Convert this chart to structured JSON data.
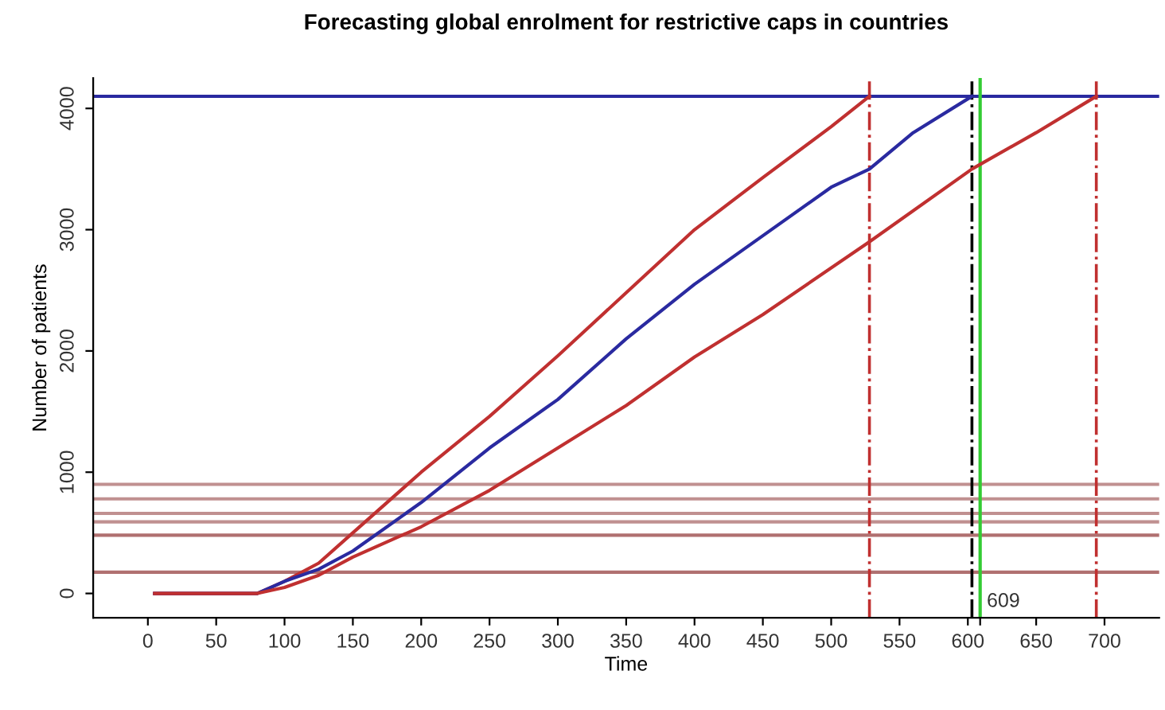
{
  "chart_data": {
    "type": "line",
    "title": "Forecasting global enrolment for restrictive caps in countries",
    "xlabel": "Time",
    "ylabel": "Number of patients",
    "series": [
      {
        "color": "#c03030",
        "x": [
          5,
          60,
          80,
          100,
          125,
          150,
          200,
          250,
          300,
          350,
          400,
          450,
          500,
          528
        ],
        "values": [
          0,
          0,
          0,
          100,
          250,
          500,
          1000,
          1460,
          1960,
          2480,
          3000,
          3430,
          3850,
          4100
        ]
      },
      {
        "color": "#2a2aa0",
        "x": [
          5,
          60,
          80,
          100,
          125,
          150,
          200,
          250,
          300,
          350,
          400,
          450,
          500,
          528,
          560,
          603
        ],
        "values": [
          0,
          0,
          0,
          100,
          200,
          350,
          750,
          1200,
          1600,
          2100,
          2550,
          2950,
          3350,
          3500,
          3800,
          4100
        ]
      },
      {
        "color": "#c03030",
        "x": [
          5,
          60,
          80,
          100,
          125,
          150,
          200,
          250,
          300,
          350,
          400,
          450,
          528,
          603,
          650,
          694
        ],
        "values": [
          0,
          0,
          0,
          50,
          150,
          300,
          550,
          850,
          1200,
          1550,
          1950,
          2300,
          2900,
          3500,
          3800,
          4100
        ]
      }
    ],
    "ref_lines": [
      {
        "axis": "y",
        "value": 4100,
        "color": "#2a2aa0",
        "line_style": "solid"
      },
      {
        "axis": "y",
        "value": 900,
        "color": "#c09090",
        "line_style": "solid"
      },
      {
        "axis": "y",
        "value": 780,
        "color": "#c09090",
        "line_style": "solid"
      },
      {
        "axis": "y",
        "value": 660,
        "color": "#c09090",
        "line_style": "solid"
      },
      {
        "axis": "y",
        "value": 590,
        "color": "#c09090",
        "line_style": "solid"
      },
      {
        "axis": "y",
        "value": 480,
        "color": "#b07070",
        "line_style": "solid"
      },
      {
        "axis": "y",
        "value": 175,
        "color": "#b07070",
        "line_style": "solid"
      },
      {
        "axis": "x",
        "value": 528,
        "color": "#c03030",
        "line_style": "dashed"
      },
      {
        "axis": "x",
        "value": 603,
        "color": "#000000",
        "line_style": "dashed"
      },
      {
        "axis": "x",
        "value": 609,
        "color": "#33cc33",
        "line_style": "solid",
        "label": "609"
      },
      {
        "axis": "x",
        "value": 694,
        "color": "#c03030",
        "line_style": "dashed"
      }
    ],
    "xlim": [
      -40,
      740
    ],
    "ylim": [
      -200,
      4250
    ],
    "xticks": [
      0,
      50,
      100,
      150,
      200,
      250,
      300,
      350,
      400,
      450,
      500,
      550,
      600,
      {
        "value": 609,
        "label": null
      },
      650,
      700
    ],
    "yticks": [
      0,
      1000,
      2000,
      3000,
      4000
    ],
    "grid": false,
    "legend": false,
    "marker": "none",
    "line_style": "solid"
  }
}
